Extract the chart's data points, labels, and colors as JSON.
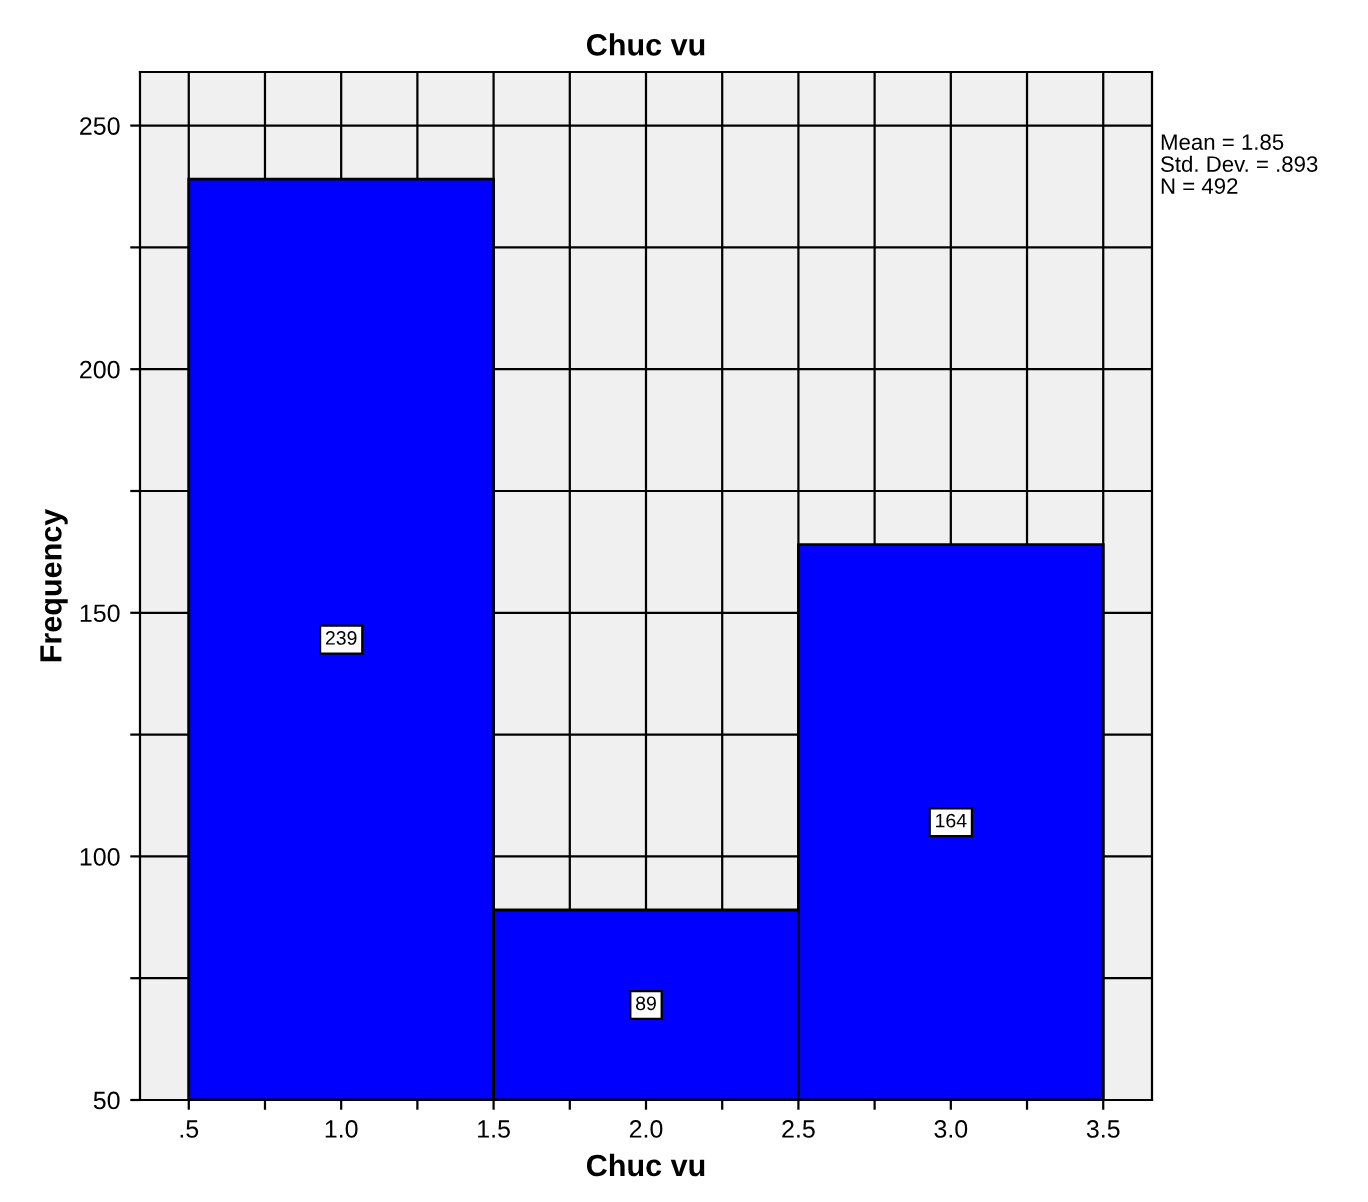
{
  "chart_data": {
    "type": "histogram",
    "title": "Chuc vu",
    "xlabel": "Chuc vu",
    "ylabel": "Frequency",
    "bins": [
      0.5,
      1.5,
      2.5,
      3.5
    ],
    "values": [
      239,
      89,
      164
    ],
    "color": "#0000ff",
    "xlim": [
      0.34,
      3.66
    ],
    "ylim": [
      50,
      261
    ],
    "xticks": [
      {
        "value": 0.5,
        "label": ".5"
      },
      {
        "value": 0.75,
        "label": null
      },
      {
        "value": 1.0,
        "label": "1.0"
      },
      {
        "value": 1.25,
        "label": null
      },
      {
        "value": 1.5,
        "label": "1.5"
      },
      {
        "value": 1.75,
        "label": null
      },
      {
        "value": 2.0,
        "label": "2.0"
      },
      {
        "value": 2.25,
        "label": null
      },
      {
        "value": 2.5,
        "label": "2.5"
      },
      {
        "value": 2.75,
        "label": null
      },
      {
        "value": 3.0,
        "label": "3.0"
      },
      {
        "value": 3.25,
        "label": null
      },
      {
        "value": 3.5,
        "label": "3.5"
      }
    ],
    "yticks": [
      50,
      {
        "value": 75,
        "label": null
      },
      100,
      {
        "value": 125,
        "label": null
      },
      150,
      {
        "value": 175,
        "label": null
      },
      200,
      {
        "value": 225,
        "label": null
      },
      250
    ],
    "grid": true,
    "data_labels": true,
    "annotations": [
      "Mean = 1.85",
      "Std. Dev. = .893",
      "N = 492"
    ]
  }
}
